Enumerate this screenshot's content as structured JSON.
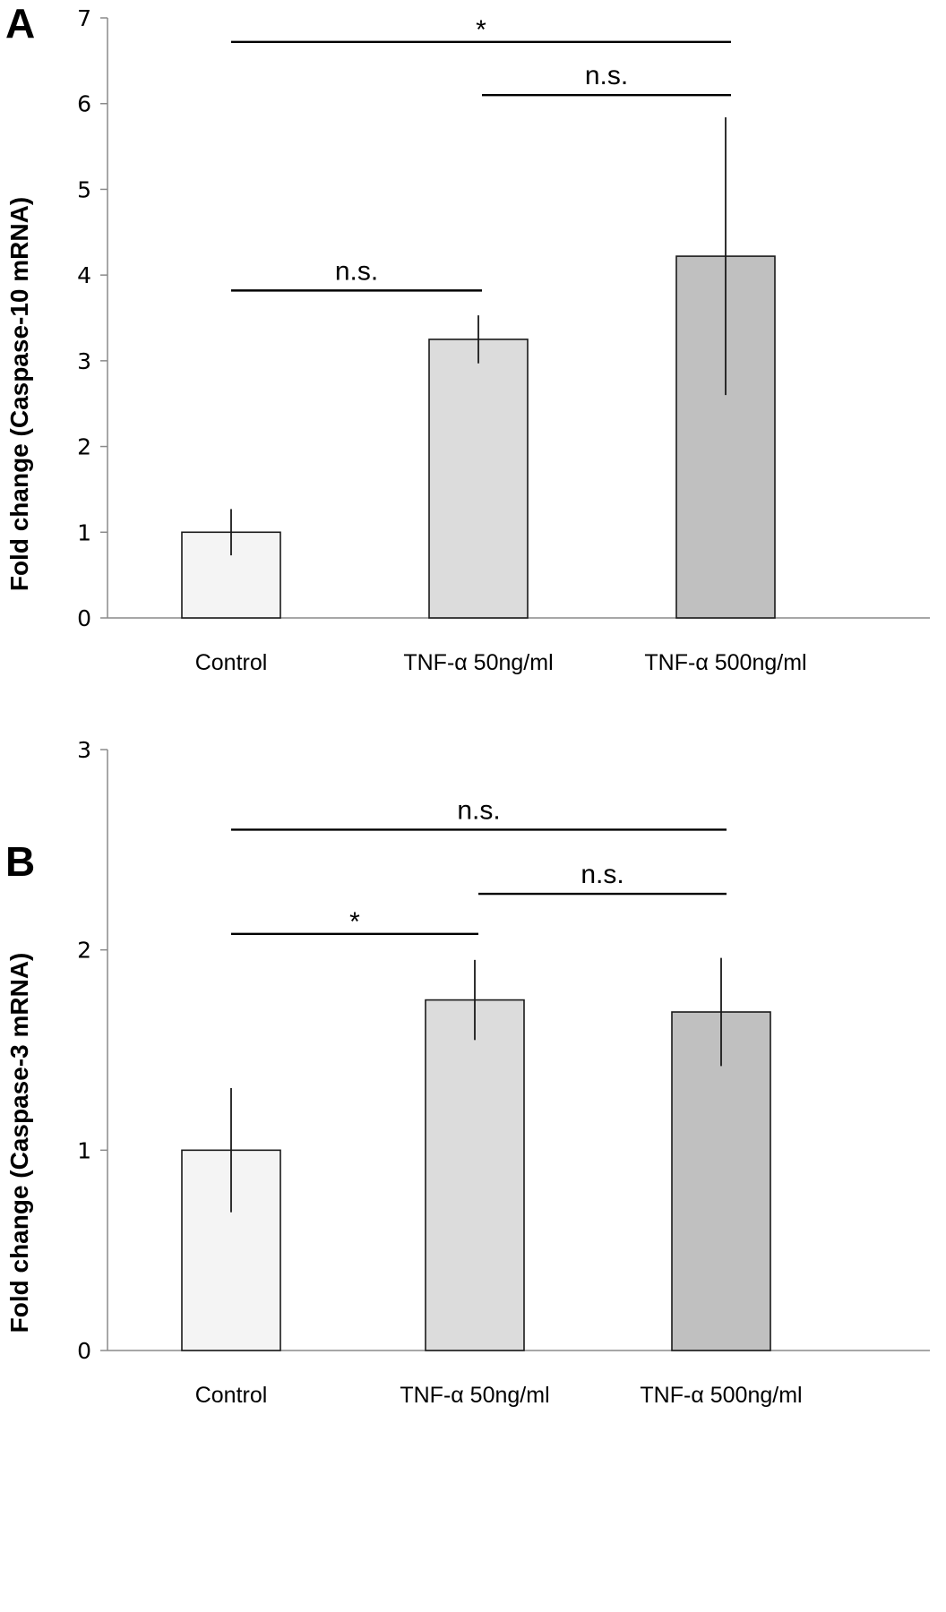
{
  "chart_data": [
    {
      "type": "bar",
      "panel": "A",
      "ylabel": "Fold change  (Caspase-10 mRNA)",
      "categories": [
        "Control",
        "TNF-α 50ng/ml",
        "TNF-α 500ng/ml"
      ],
      "values": [
        1.0,
        3.25,
        4.22
      ],
      "errors": [
        0.27,
        0.28,
        1.62
      ],
      "colors": [
        "#f4f4f4",
        "#dcdcdc",
        "#c0c0c0"
      ],
      "ylim": [
        0,
        7
      ],
      "yticks": [
        0,
        1,
        2,
        3,
        4,
        5,
        6,
        7
      ],
      "significance": [
        {
          "label": "*",
          "from": 0,
          "to": 2,
          "y": 6.72
        },
        {
          "label": "n.s.",
          "from": 1,
          "to": 2,
          "y": 6.1
        },
        {
          "label": "n.s.",
          "from": 0,
          "to": 1,
          "y": 3.82
        }
      ],
      "grid": false
    },
    {
      "type": "bar",
      "panel": "B",
      "ylabel": "Fold change  (Caspase-3 mRNA)",
      "categories": [
        "Control",
        "TNF-α 50ng/ml",
        "TNF-α 500ng/ml"
      ],
      "values": [
        1.0,
        1.75,
        1.69
      ],
      "errors": [
        0.31,
        0.2,
        0.27
      ],
      "colors": [
        "#f4f4f4",
        "#dcdcdc",
        "#c0c0c0"
      ],
      "ylim": [
        0,
        3
      ],
      "yticks": [
        0,
        1,
        2,
        3
      ],
      "significance": [
        {
          "label": "n.s.",
          "from": 0,
          "to": 2,
          "y": 2.6
        },
        {
          "label": "n.s.",
          "from": 1,
          "to": 2,
          "y": 2.28
        },
        {
          "label": "*",
          "from": 0,
          "to": 1,
          "y": 2.08
        }
      ],
      "grid": false
    }
  ]
}
